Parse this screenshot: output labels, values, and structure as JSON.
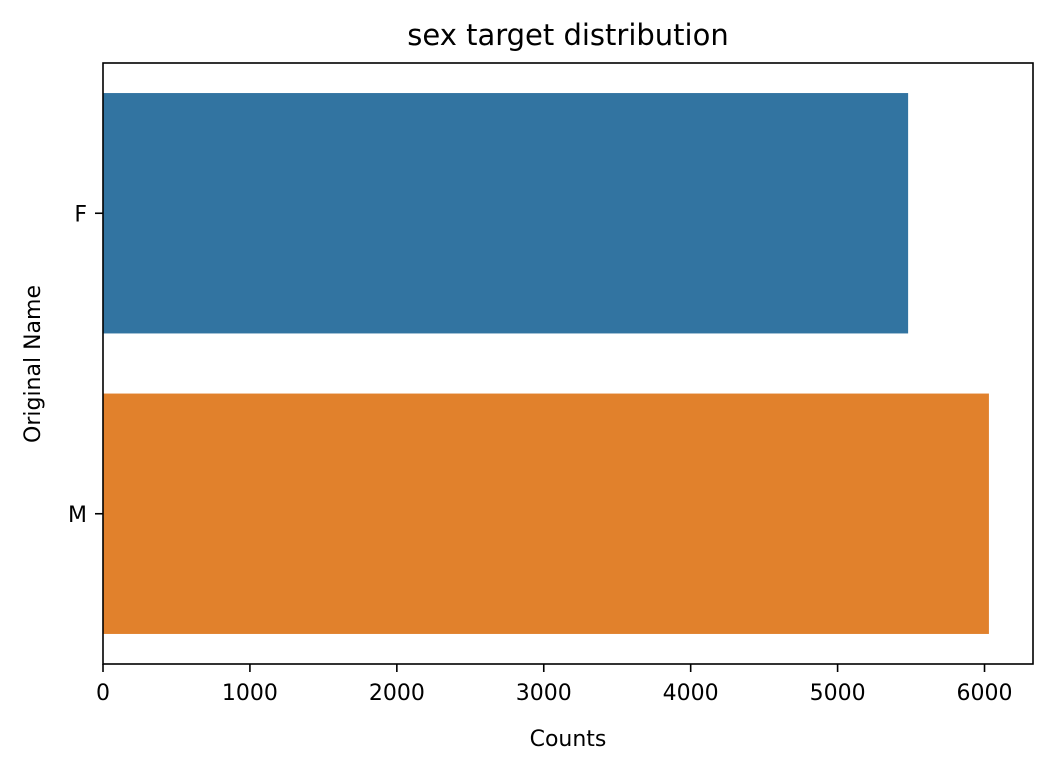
{
  "chart_data": {
    "type": "bar",
    "orientation": "horizontal",
    "title": "sex target distribution",
    "xlabel": "Counts",
    "ylabel": "Original Name",
    "categories": [
      "F",
      "M"
    ],
    "values": [
      5480,
      6030
    ],
    "colors": [
      "#3274a1",
      "#e1812c"
    ],
    "xlim": [
      0,
      6330
    ],
    "xticks": [
      0,
      1000,
      2000,
      3000,
      4000,
      5000,
      6000
    ],
    "grid": false,
    "legend": "none"
  }
}
